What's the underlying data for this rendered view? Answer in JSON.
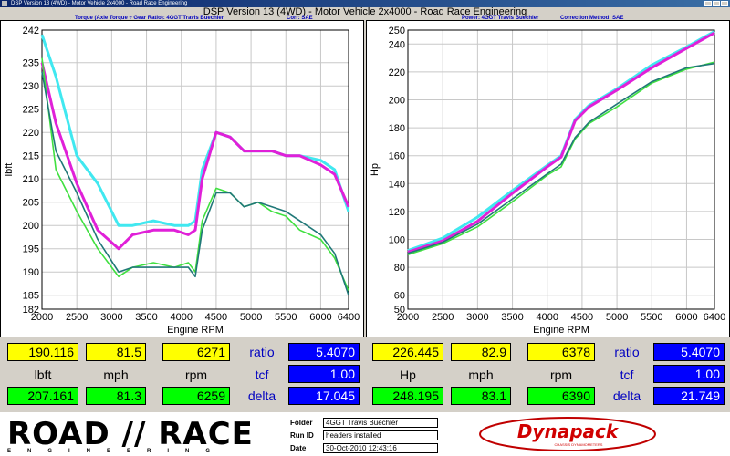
{
  "window": {
    "title": "DSP Version 13 (4WD) - Motor Vehicle 2x4000 - Road Race Engineering"
  },
  "app_title": "DSP Version 13 (4WD) - Motor Vehicle 2x4000 - Road Race Engineering",
  "left_header": {
    "title": "Torque (Axle Torque ÷ Gear Ratio): 4GGT Travis Buechler",
    "corr": "Corr: SAE"
  },
  "right_header": {
    "title": "Power: 4GGT Travis Buechler",
    "corr": "Correction Method: SAE"
  },
  "colors": {
    "magenta": "#e020d8",
    "cyan": "#40e8f0",
    "green": "#40e040",
    "teal": "#207878"
  },
  "chart_data": [
    {
      "type": "line",
      "title": "",
      "xlabel": "Engine RPM",
      "ylabel": "lbft",
      "xlim": [
        2000,
        6400
      ],
      "ylim": [
        182,
        242
      ],
      "xticks": [
        "2000",
        "2500",
        "3000",
        "3500",
        "4000",
        "4500",
        "5000",
        "5500",
        "6000",
        "6400"
      ],
      "yticks": [
        "242",
        "235",
        "230",
        "225",
        "220",
        "215",
        "210",
        "205",
        "200",
        "195",
        "190",
        "185",
        "182"
      ],
      "series": [
        {
          "color": "#40e8f0",
          "x": [
            2000,
            2200,
            2500,
            2800,
            3100,
            3300,
            3600,
            3900,
            4100,
            4200,
            4300,
            4500,
            4700,
            4900,
            5100,
            5300,
            5500,
            5700,
            6000,
            6200,
            6400
          ],
          "y": [
            241,
            232,
            215,
            209,
            200,
            200,
            201,
            200,
            200,
            201,
            212,
            220,
            219,
            216,
            216,
            216,
            215,
            215,
            214,
            212,
            203
          ]
        },
        {
          "color": "#e020d8",
          "x": [
            2000,
            2200,
            2500,
            2800,
            3100,
            3300,
            3600,
            3900,
            4100,
            4200,
            4300,
            4500,
            4700,
            4900,
            5100,
            5300,
            5500,
            5700,
            6000,
            6200,
            6400
          ],
          "y": [
            235,
            222,
            209,
            199,
            195,
            198,
            199,
            199,
            198,
            199,
            210,
            220,
            219,
            216,
            216,
            216,
            215,
            215,
            213,
            211,
            204
          ]
        },
        {
          "color": "#40e040",
          "x": [
            2000,
            2200,
            2500,
            2800,
            3100,
            3300,
            3600,
            3900,
            4100,
            4200,
            4300,
            4500,
            4700,
            4900,
            5100,
            5300,
            5500,
            5700,
            6000,
            6200,
            6400
          ],
          "y": [
            236,
            212,
            203,
            195,
            189,
            191,
            192,
            191,
            192,
            190,
            201,
            208,
            207,
            204,
            205,
            203,
            202,
            199,
            197,
            193,
            186
          ]
        },
        {
          "color": "#207878",
          "x": [
            2000,
            2200,
            2500,
            2800,
            3100,
            3300,
            3600,
            3900,
            4100,
            4200,
            4300,
            4500,
            4700,
            4900,
            5100,
            5300,
            5500,
            5700,
            6000,
            6200,
            6400
          ],
          "y": [
            233,
            216,
            207,
            197,
            190,
            191,
            191,
            191,
            191,
            189,
            199,
            207,
            207,
            204,
            205,
            204,
            203,
            201,
            198,
            194,
            185
          ]
        }
      ]
    },
    {
      "type": "line",
      "title": "",
      "xlabel": "Engine RPM",
      "ylabel": "Hp",
      "xlim": [
        2000,
        6400
      ],
      "ylim": [
        50,
        250
      ],
      "xticks": [
        "2000",
        "2500",
        "3000",
        "3500",
        "4000",
        "4500",
        "5000",
        "5500",
        "6000",
        "6400"
      ],
      "yticks": [
        "250",
        "240",
        "220",
        "200",
        "180",
        "160",
        "140",
        "120",
        "100",
        "80",
        "60",
        "50"
      ],
      "series": [
        {
          "color": "#40e8f0",
          "x": [
            2000,
            2500,
            3000,
            3500,
            4000,
            4200,
            4400,
            4600,
            5000,
            5500,
            6000,
            6400
          ],
          "y": [
            92,
            101,
            116,
            135,
            153,
            160,
            186,
            196,
            208,
            225,
            238,
            249
          ]
        },
        {
          "color": "#e020d8",
          "x": [
            2000,
            2500,
            3000,
            3500,
            4000,
            4200,
            4400,
            4600,
            5000,
            5500,
            6000,
            6400
          ],
          "y": [
            91,
            99,
            113,
            133,
            152,
            159,
            185,
            195,
            207,
            223,
            237,
            248
          ]
        },
        {
          "color": "#40e040",
          "x": [
            2000,
            2500,
            3000,
            3500,
            4000,
            4200,
            4400,
            4600,
            5000,
            5500,
            6000,
            6400
          ],
          "y": [
            89,
            97,
            109,
            127,
            146,
            152,
            172,
            183,
            195,
            212,
            222,
            227
          ]
        },
        {
          "color": "#207878",
          "x": [
            2000,
            2500,
            3000,
            3500,
            4000,
            4200,
            4400,
            4600,
            5000,
            5500,
            6000,
            6400
          ],
          "y": [
            90,
            98,
            111,
            129,
            147,
            154,
            173,
            184,
            197,
            213,
            223,
            226
          ]
        }
      ]
    }
  ],
  "left_panel": {
    "top": {
      "lbft": "190.116",
      "mph": "81.5",
      "rpm": "6271",
      "ratio_label": "ratio",
      "ratio": "5.4070"
    },
    "mid": {
      "unit1": "lbft",
      "unit2": "mph",
      "unit3": "rpm",
      "tcf_label": "tcf",
      "tcf": "1.00"
    },
    "bot": {
      "lbft": "207.161",
      "mph": "81.3",
      "rpm": "6259",
      "delta_label": "delta",
      "delta": "17.045"
    }
  },
  "right_panel": {
    "top": {
      "hp": "226.445",
      "mph": "82.9",
      "rpm": "6378",
      "ratio_label": "ratio",
      "ratio": "5.4070"
    },
    "mid": {
      "unit1": "Hp",
      "unit2": "mph",
      "unit3": "rpm",
      "tcf_label": "tcf",
      "tcf": "1.00"
    },
    "bot": {
      "hp": "248.195",
      "mph": "83.1",
      "rpm": "6390",
      "delta_label": "delta",
      "delta": "21.749"
    }
  },
  "footer": {
    "logo_text": "ROAD // RACE",
    "logo_sub": "ENGINEERING",
    "folder_label": "Folder",
    "folder": "4GGT Travis Buechler",
    "runid_label": "Run ID",
    "runid": "headers installed",
    "date_label": "Date",
    "date": "30-Oct-2010 12:43:16",
    "dyna_logo": "Dynapack",
    "dyna_sub": "CHASSIS DYNAMOMETERS"
  }
}
